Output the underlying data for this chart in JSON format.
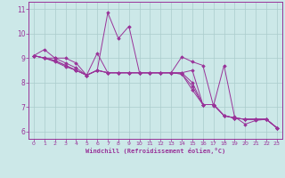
{
  "xlabel": "Windchill (Refroidissement éolien,°C)",
  "bg_color": "#cce8e8",
  "line_color": "#993399",
  "grid_color": "#aacccc",
  "xlim": [
    -0.5,
    23.5
  ],
  "ylim": [
    5.7,
    11.3
  ],
  "yticks": [
    6,
    7,
    8,
    9,
    10,
    11
  ],
  "xticks": [
    0,
    1,
    2,
    3,
    4,
    5,
    6,
    7,
    8,
    9,
    10,
    11,
    12,
    13,
    14,
    15,
    16,
    17,
    18,
    19,
    20,
    21,
    22,
    23
  ],
  "hours": [
    0,
    1,
    2,
    3,
    4,
    5,
    6,
    7,
    8,
    9,
    10,
    11,
    12,
    13,
    14,
    15,
    16,
    17,
    18,
    19,
    20,
    21,
    22,
    23
  ],
  "series": [
    [
      9.1,
      9.35,
      9.0,
      9.0,
      8.8,
      8.3,
      8.5,
      10.85,
      9.8,
      10.3,
      8.4,
      8.4,
      8.4,
      8.4,
      9.05,
      8.85,
      8.7,
      7.05,
      8.7,
      6.6,
      6.3,
      6.45,
      6.5,
      6.15
    ],
    [
      9.1,
      9.0,
      9.0,
      8.8,
      8.6,
      8.3,
      9.2,
      8.4,
      8.4,
      8.4,
      8.4,
      8.4,
      8.4,
      8.4,
      8.4,
      8.5,
      7.1,
      7.1,
      6.65,
      6.55,
      6.5,
      6.5,
      6.5,
      6.15
    ],
    [
      9.1,
      9.0,
      8.9,
      8.7,
      8.5,
      8.3,
      8.5,
      8.4,
      8.4,
      8.4,
      8.4,
      8.4,
      8.4,
      8.4,
      8.4,
      8.0,
      7.1,
      7.1,
      6.65,
      6.55,
      6.5,
      6.5,
      6.5,
      6.15
    ],
    [
      9.1,
      9.0,
      8.9,
      8.7,
      8.5,
      8.3,
      8.5,
      8.4,
      8.4,
      8.4,
      8.4,
      8.4,
      8.4,
      8.4,
      8.35,
      7.85,
      7.1,
      7.1,
      6.65,
      6.55,
      6.5,
      6.5,
      6.5,
      6.15
    ],
    [
      9.1,
      9.0,
      8.85,
      8.65,
      8.5,
      8.3,
      8.5,
      8.4,
      8.4,
      8.4,
      8.4,
      8.4,
      8.4,
      8.4,
      8.35,
      7.7,
      7.1,
      7.1,
      6.65,
      6.55,
      6.5,
      6.5,
      6.5,
      6.15
    ]
  ]
}
